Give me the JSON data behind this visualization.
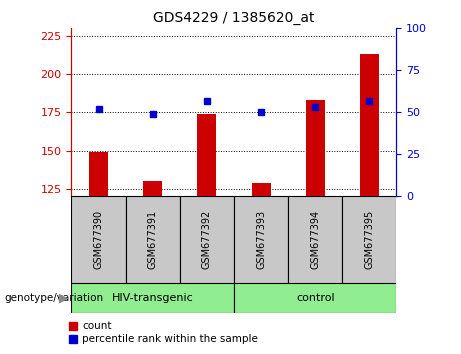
{
  "title": "GDS4229 / 1385620_at",
  "samples": [
    "GSM677390",
    "GSM677391",
    "GSM677392",
    "GSM677393",
    "GSM677394",
    "GSM677395"
  ],
  "count_values": [
    149,
    130,
    174,
    129,
    183,
    213
  ],
  "percentile_values": [
    52,
    49,
    57,
    50,
    53,
    57
  ],
  "ylim_left": [
    120,
    230
  ],
  "ylim_right": [
    0,
    100
  ],
  "yticks_left": [
    125,
    150,
    175,
    200,
    225
  ],
  "yticks_right": [
    0,
    25,
    50,
    75,
    100
  ],
  "groups": [
    {
      "label": "HIV-transgenic",
      "indices": [
        0,
        1,
        2
      ],
      "color": "#90EE90"
    },
    {
      "label": "control",
      "indices": [
        3,
        4,
        5
      ],
      "color": "#90EE90"
    }
  ],
  "bar_color": "#CC0000",
  "dot_color": "#0000CC",
  "bar_width": 0.35,
  "sample_box_color": "#C8C8C8",
  "left_axis_color": "#CC0000",
  "right_axis_color": "#0000CC",
  "legend_count_label": "count",
  "legend_percentile_label": "percentile rank within the sample",
  "genotype_label": "genotype/variation"
}
